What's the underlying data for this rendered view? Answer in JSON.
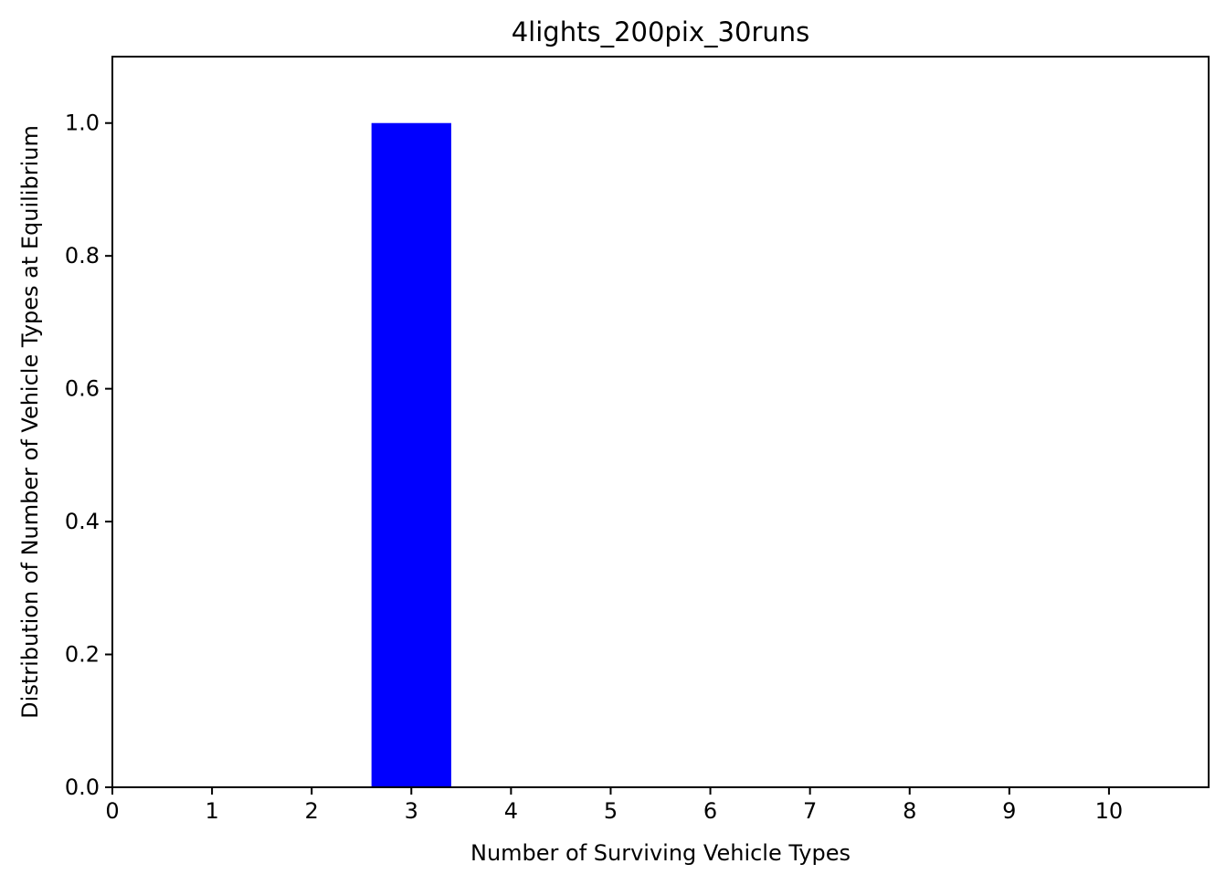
{
  "chart_data": {
    "type": "bar",
    "title": "4lights_200pix_30runs",
    "xlabel": "Number of Surviving Vehicle Types",
    "ylabel": "Distribution of Number of Vehicle Types at Equilibrium",
    "xlim": [
      0,
      11
    ],
    "ylim": [
      0,
      1.1
    ],
    "x_ticks": [
      0,
      1,
      2,
      3,
      4,
      5,
      6,
      7,
      8,
      9,
      10
    ],
    "x_tick_labels": [
      "0",
      "1",
      "2",
      "3",
      "4",
      "5",
      "6",
      "7",
      "8",
      "9",
      "10"
    ],
    "y_ticks": [
      0.0,
      0.2,
      0.4,
      0.6,
      0.8,
      1.0
    ],
    "y_tick_labels": [
      "0.0",
      "0.2",
      "0.4",
      "0.6",
      "0.8",
      "1.0"
    ],
    "bar_width": 0.8,
    "bar_color": "#0000ff",
    "bars": [
      {
        "x": 3,
        "value": 1.0
      }
    ],
    "grid": false,
    "legend": "none"
  }
}
